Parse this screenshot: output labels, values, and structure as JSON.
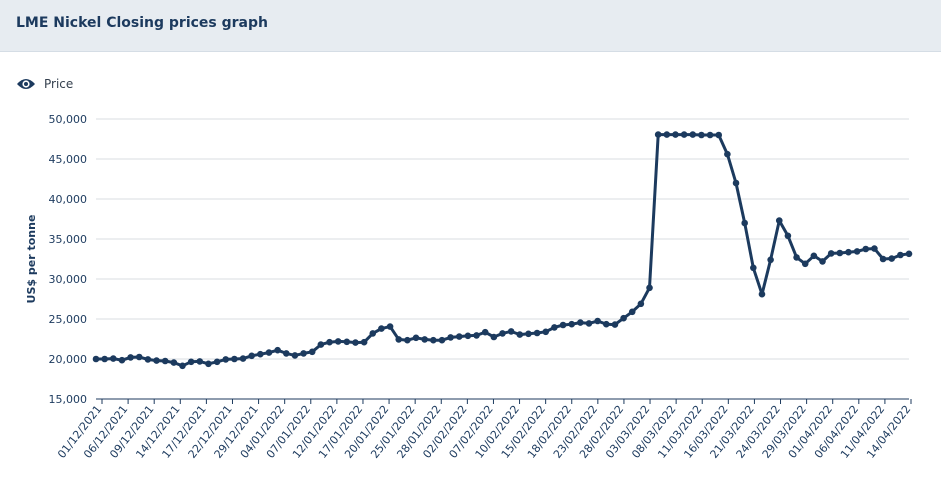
{
  "header": {
    "title": "LME Nickel Closing prices graph"
  },
  "legend": {
    "icon": "eye-icon",
    "label": "Price"
  },
  "colors": {
    "line": "#1c3a5e",
    "grid": "#d9dde2",
    "axis": "#1c3a5e",
    "header_bg": "#e7ecf1"
  },
  "chart_data": {
    "type": "line",
    "title": "LME Nickel Closing prices graph",
    "xlabel": "",
    "ylabel": "US$ per tonne",
    "ylim": [
      15000,
      50000
    ],
    "yticks": [
      15000,
      20000,
      25000,
      30000,
      35000,
      40000,
      45000,
      50000
    ],
    "ytick_labels": [
      "15,000",
      "20,000",
      "25,000",
      "30,000",
      "35,000",
      "40,000",
      "45,000",
      "50,000"
    ],
    "grid": true,
    "legend_position": "top-left",
    "x_tick_labels": [
      "01/12/2021",
      "06/12/2021",
      "09/12/2021",
      "14/12/2021",
      "17/12/2021",
      "22/12/2021",
      "29/12/2021",
      "04/01/2022",
      "07/01/2022",
      "12/01/2022",
      "17/01/2022",
      "20/01/2022",
      "25/01/2022",
      "28/01/2022",
      "02/02/2022",
      "07/02/2022",
      "10/02/2022",
      "15/02/2022",
      "18/02/2022",
      "23/02/2022",
      "28/02/2022",
      "03/03/2022",
      "08/03/2022",
      "11/03/2022",
      "16/03/2022",
      "21/03/2022",
      "24/03/2022",
      "29/03/2022",
      "01/04/2022",
      "06/04/2022",
      "11/04/2022",
      "14/04/2022"
    ],
    "series": [
      {
        "name": "Price",
        "values": [
          20000,
          20000,
          20050,
          19850,
          20200,
          20250,
          19950,
          19800,
          19750,
          19550,
          19150,
          19650,
          19700,
          19400,
          19650,
          19950,
          20000,
          20050,
          20400,
          20600,
          20800,
          21100,
          20700,
          20450,
          20700,
          20900,
          21800,
          22100,
          22200,
          22150,
          22050,
          22100,
          23200,
          23800,
          24050,
          22450,
          22350,
          22650,
          22450,
          22350,
          22350,
          22700,
          22800,
          22900,
          22950,
          23350,
          22750,
          23200,
          23450,
          23050,
          23150,
          23250,
          23400,
          23950,
          24250,
          24350,
          24550,
          24450,
          24750,
          24350,
          24300,
          25100,
          25900,
          26900,
          28900,
          48050,
          48050,
          48050,
          48050,
          48050,
          48000,
          48000,
          48000,
          45600,
          42000,
          37000,
          31400,
          28100,
          32400,
          37300,
          35400,
          32700,
          31900,
          32900,
          32200,
          33200,
          33250,
          33350,
          33450,
          33750,
          33800,
          32500,
          32550,
          33000,
          33150
        ]
      }
    ]
  }
}
